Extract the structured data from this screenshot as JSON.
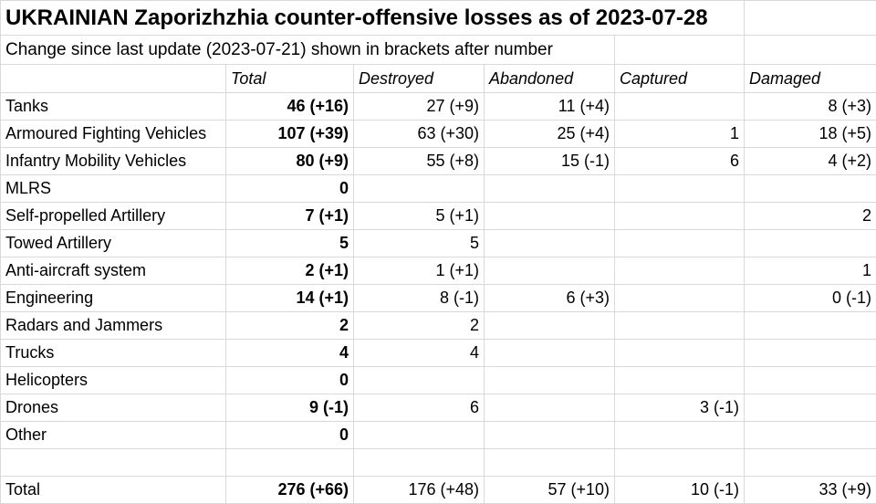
{
  "title": "UKRAINIAN Zaporizhzhia counter-offensive losses as of 2023-07-28",
  "subtitle": "Change since last update (2023-07-21) shown in brackets after number",
  "columns": [
    "",
    "Total",
    "Destroyed",
    "Abandoned",
    "Captured",
    "Damaged"
  ],
  "rows": [
    {
      "category": "Tanks",
      "total": "46 (+16)",
      "destroyed": "27 (+9)",
      "abandoned": "11 (+4)",
      "captured": "",
      "damaged": "8 (+3)"
    },
    {
      "category": "Armoured Fighting Vehicles",
      "total": "107 (+39)",
      "destroyed": "63 (+30)",
      "abandoned": "25 (+4)",
      "captured": "1",
      "damaged": "18 (+5)"
    },
    {
      "category": "Infantry Mobility Vehicles",
      "total": "80 (+9)",
      "destroyed": "55 (+8)",
      "abandoned": "15 (-1)",
      "captured": "6",
      "damaged": "4 (+2)"
    },
    {
      "category": "MLRS",
      "total": "0",
      "destroyed": "",
      "abandoned": "",
      "captured": "",
      "damaged": ""
    },
    {
      "category": "Self-propelled Artillery",
      "total": "7 (+1)",
      "destroyed": "5 (+1)",
      "abandoned": "",
      "captured": "",
      "damaged": "2"
    },
    {
      "category": "Towed Artillery",
      "total": "5",
      "destroyed": "5",
      "abandoned": "",
      "captured": "",
      "damaged": ""
    },
    {
      "category": "Anti-aircraft system",
      "total": "2 (+1)",
      "destroyed": "1 (+1)",
      "abandoned": "",
      "captured": "",
      "damaged": "1"
    },
    {
      "category": "Engineering",
      "total": "14 (+1)",
      "destroyed": "8 (-1)",
      "abandoned": "6 (+3)",
      "captured": "",
      "damaged": "0 (-1)"
    },
    {
      "category": "Radars and Jammers",
      "total": "2",
      "destroyed": "2",
      "abandoned": "",
      "captured": "",
      "damaged": ""
    },
    {
      "category": "Trucks",
      "total": "4",
      "destroyed": "4",
      "abandoned": "",
      "captured": "",
      "damaged": ""
    },
    {
      "category": "Helicopters",
      "total": "0",
      "destroyed": "",
      "abandoned": "",
      "captured": "",
      "damaged": ""
    },
    {
      "category": "Drones",
      "total": "9 (-1)",
      "destroyed": "6",
      "abandoned": "",
      "captured": "3 (-1)",
      "damaged": ""
    },
    {
      "category": "Other",
      "total": "0",
      "destroyed": "",
      "abandoned": "",
      "captured": "",
      "damaged": ""
    },
    {
      "category": "",
      "total": "",
      "destroyed": "",
      "abandoned": "",
      "captured": "",
      "damaged": ""
    },
    {
      "category": "Total",
      "total": "276 (+66)",
      "destroyed": "176 (+48)",
      "abandoned": "57 (+10)",
      "captured": "10 (-1)",
      "damaged": "33 (+9)"
    }
  ]
}
